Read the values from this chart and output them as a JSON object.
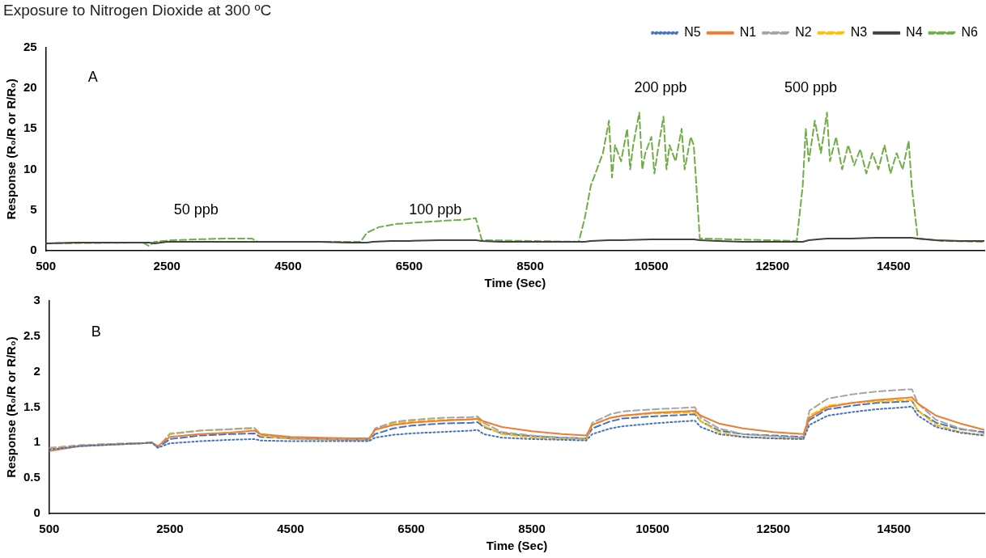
{
  "chart_data": [
    {
      "type": "line",
      "title": "Exposure to Nitrogen Dioxide at 300 ºC",
      "xlabel": "Time (Sec)",
      "ylabel": "Response (R₀/R or R/R₀)",
      "x": [
        500,
        1000,
        1500,
        2000,
        2200,
        2300,
        2500,
        3000,
        3500,
        3900,
        4000,
        4500,
        5000,
        5500,
        5800,
        5900,
        6200,
        6500,
        7000,
        7500,
        7600,
        7700,
        8000,
        8500,
        9000,
        9400,
        9500,
        9800,
        10000,
        10500,
        11000,
        11200,
        11300,
        11600,
        12000,
        12500,
        13000,
        13100,
        13400,
        13800,
        14200,
        14700,
        14800,
        14900,
        15200,
        15600,
        16000
      ],
      "xlim": [
        500,
        16000
      ],
      "xticks": [
        500,
        2500,
        4500,
        6500,
        8500,
        10500,
        12500,
        14500
      ],
      "ylim": [
        0,
        25
      ],
      "yticks": [
        0,
        5,
        10,
        15,
        20,
        25
      ],
      "grid": false,
      "legend": "top right",
      "marker": "none",
      "annotations": [
        "A",
        "50 ppb",
        "100 ppb",
        "200 ppb",
        "500 ppb"
      ],
      "series": [
        {
          "name": "N5",
          "color": "#4472c4",
          "line_style": "dotted",
          "values": [
            null,
            null,
            null,
            null,
            null,
            null,
            null,
            null,
            null,
            null,
            null,
            null,
            null,
            null,
            null,
            null,
            null,
            null,
            null,
            null,
            null,
            null,
            null,
            null,
            null,
            null,
            null,
            null,
            null,
            null,
            null,
            null,
            null,
            null,
            null,
            null,
            null,
            null,
            null,
            null,
            null,
            null,
            null,
            null,
            null,
            null,
            null
          ]
        },
        {
          "name": "N1",
          "color": "#ed7d31",
          "line_style": "solid",
          "values": [
            null,
            null,
            null,
            null,
            null,
            null,
            null,
            null,
            null,
            null,
            null,
            null,
            null,
            null,
            null,
            null,
            null,
            null,
            null,
            null,
            null,
            null,
            null,
            null,
            null,
            null,
            null,
            null,
            null,
            null,
            null,
            null,
            null,
            null,
            null,
            null,
            null,
            null,
            null,
            null,
            null,
            null,
            null,
            null,
            null,
            null,
            null
          ]
        },
        {
          "name": "N2",
          "color": "#a5a5a5",
          "line_style": "dashed",
          "values": [
            null,
            null,
            null,
            null,
            null,
            null,
            null,
            null,
            null,
            null,
            null,
            null,
            null,
            null,
            null,
            null,
            null,
            null,
            null,
            null,
            null,
            null,
            null,
            null,
            null,
            null,
            null,
            null,
            null,
            null,
            null,
            null,
            null,
            null,
            null,
            null,
            null,
            null,
            null,
            null,
            null,
            null,
            null,
            null,
            null,
            null,
            null
          ]
        },
        {
          "name": "N3",
          "color": "#ffc000",
          "line_style": "dashed",
          "values": [
            null,
            null,
            null,
            null,
            null,
            null,
            null,
            null,
            null,
            null,
            null,
            null,
            null,
            null,
            null,
            null,
            null,
            null,
            null,
            null,
            null,
            null,
            null,
            null,
            null,
            null,
            null,
            null,
            null,
            null,
            null,
            null,
            null,
            null,
            null,
            null,
            null,
            null,
            null,
            null,
            null,
            null,
            null,
            null,
            null,
            null,
            null
          ]
        },
        {
          "name": "N4",
          "color": "#404040",
          "line_style": "solid",
          "values": [
            0.9,
            1,
            1,
            1,
            1,
            0.9,
            1.1,
            1.1,
            1.1,
            1.1,
            1.1,
            1.1,
            1.1,
            1,
            1,
            1.1,
            1.2,
            1.2,
            1.3,
            1.3,
            1.3,
            1.2,
            1.1,
            1.1,
            1.1,
            1.1,
            1.2,
            1.3,
            1.3,
            1.4,
            1.4,
            1.4,
            1.3,
            1.2,
            1.1,
            1.1,
            1.1,
            1.3,
            1.5,
            1.5,
            1.6,
            1.6,
            1.6,
            1.5,
            1.3,
            1.2,
            1.2
          ]
        },
        {
          "name": "N6",
          "color": "#70ad47",
          "line_style": "dashed",
          "x": [
            500,
            2100,
            2200,
            2300,
            2600,
            3000,
            3500,
            3900,
            4000,
            5700,
            5800,
            6000,
            6300,
            6700,
            7100,
            7400,
            7600,
            7700,
            9300,
            9400,
            9500,
            9600,
            9700,
            9800,
            9850,
            9900,
            10000,
            10100,
            10150,
            10200,
            10300,
            10350,
            10400,
            10500,
            10550,
            10600,
            10700,
            10750,
            10800,
            10900,
            11000,
            11050,
            11150,
            11200,
            11300,
            12900,
            13000,
            13050,
            13100,
            13200,
            13300,
            13400,
            13450,
            13550,
            13650,
            13750,
            13850,
            13950,
            14050,
            14150,
            14250,
            14350,
            14450,
            14550,
            14650,
            14750,
            14800,
            14900,
            15300,
            16000
          ],
          "values": [
            0.9,
            1.0,
            0.6,
            1.1,
            1.3,
            1.4,
            1.5,
            1.5,
            1.1,
            1.1,
            2.2,
            2.9,
            3.3,
            3.5,
            3.7,
            3.8,
            4.0,
            1.3,
            1.1,
            4,
            8,
            10,
            12,
            16,
            9,
            13,
            11,
            15,
            10,
            13,
            17,
            10,
            12,
            14,
            9.5,
            12,
            16.5,
            10,
            13,
            11,
            15,
            10,
            14,
            13,
            1.5,
            1.2,
            8,
            15,
            11,
            16,
            12,
            17,
            11,
            14,
            10,
            13,
            10.5,
            12.5,
            9.5,
            12,
            10,
            13,
            9.5,
            12,
            10,
            13.5,
            8,
            1.5,
            1.2,
            1.1
          ]
        }
      ]
    },
    {
      "type": "line",
      "xlabel": "Time (Sec)",
      "ylabel": "Response (R₀/R or R/R₀)",
      "x": [
        500,
        1000,
        1500,
        2000,
        2200,
        2300,
        2500,
        3000,
        3500,
        3900,
        4000,
        4500,
        5000,
        5500,
        5800,
        5900,
        6200,
        6500,
        7000,
        7500,
        7600,
        7700,
        8000,
        8500,
        9000,
        9400,
        9500,
        9800,
        10000,
        10500,
        11000,
        11200,
        11300,
        11600,
        12000,
        12500,
        13000,
        13100,
        13400,
        13800,
        14200,
        14700,
        14800,
        14900,
        15200,
        15600,
        16000
      ],
      "xlim": [
        500,
        16000
      ],
      "xticks": [
        500,
        2500,
        4500,
        6500,
        8500,
        10500,
        12500,
        14500
      ],
      "ylim": [
        0,
        3
      ],
      "yticks": [
        0,
        0.5,
        1,
        1.5,
        2,
        2.5,
        3
      ],
      "grid": false,
      "marker": "none",
      "annotations": [
        "B"
      ],
      "series": [
        {
          "color": "#4472c4",
          "line_style": "dotted",
          "values": [
            0.9,
            0.95,
            0.97,
            0.99,
            1.0,
            0.93,
            0.99,
            1.02,
            1.04,
            1.05,
            1.03,
            1.02,
            1.02,
            1.02,
            1.02,
            1.07,
            1.11,
            1.13,
            1.15,
            1.17,
            1.18,
            1.12,
            1.07,
            1.05,
            1.04,
            1.03,
            1.12,
            1.2,
            1.23,
            1.27,
            1.3,
            1.31,
            1.22,
            1.12,
            1.08,
            1.06,
            1.05,
            1.25,
            1.38,
            1.43,
            1.47,
            1.5,
            1.51,
            1.38,
            1.22,
            1.14,
            1.1
          ]
        },
        {
          "color": "#ed7d31",
          "line_style": "solid",
          "values": [
            0.88,
            0.95,
            0.97,
            0.99,
            1.0,
            0.95,
            1.08,
            1.12,
            1.14,
            1.17,
            1.12,
            1.08,
            1.07,
            1.06,
            1.06,
            1.18,
            1.25,
            1.28,
            1.31,
            1.33,
            1.34,
            1.3,
            1.22,
            1.16,
            1.12,
            1.1,
            1.25,
            1.35,
            1.38,
            1.42,
            1.44,
            1.45,
            1.38,
            1.27,
            1.2,
            1.15,
            1.12,
            1.35,
            1.5,
            1.56,
            1.6,
            1.63,
            1.64,
            1.55,
            1.38,
            1.27,
            1.18
          ]
        },
        {
          "color": "#a5a5a5",
          "line_style": "dashed",
          "values": [
            0.92,
            0.96,
            0.98,
            0.99,
            1.0,
            0.93,
            1.12,
            1.17,
            1.19,
            1.21,
            1.12,
            1.06,
            1.05,
            1.04,
            1.04,
            1.2,
            1.29,
            1.32,
            1.35,
            1.36,
            1.37,
            1.28,
            1.15,
            1.1,
            1.07,
            1.06,
            1.28,
            1.4,
            1.44,
            1.47,
            1.49,
            1.5,
            1.35,
            1.2,
            1.12,
            1.09,
            1.07,
            1.45,
            1.62,
            1.68,
            1.72,
            1.75,
            1.75,
            1.55,
            1.32,
            1.2,
            1.13
          ]
        },
        {
          "color": "#ffc000",
          "line_style": "dashed",
          "values": [
            0.93,
            0.96,
            0.98,
            0.99,
            1.0,
            0.93,
            1.13,
            1.17,
            1.19,
            1.2,
            1.1,
            1.05,
            1.04,
            1.03,
            1.03,
            1.18,
            1.27,
            1.3,
            1.32,
            1.33,
            1.33,
            1.24,
            1.12,
            1.07,
            1.05,
            1.04,
            1.25,
            1.35,
            1.38,
            1.41,
            1.42,
            1.43,
            1.3,
            1.15,
            1.08,
            1.06,
            1.05,
            1.38,
            1.52,
            1.56,
            1.58,
            1.6,
            1.6,
            1.45,
            1.25,
            1.15,
            1.1
          ]
        },
        {
          "color": "#4472c4",
          "line_style": "dashed",
          "values": [
            0.92,
            0.96,
            0.98,
            0.99,
            1.0,
            0.93,
            1.05,
            1.1,
            1.12,
            1.13,
            1.08,
            1.06,
            1.05,
            1.04,
            1.04,
            1.12,
            1.2,
            1.24,
            1.27,
            1.28,
            1.29,
            1.22,
            1.13,
            1.09,
            1.07,
            1.06,
            1.2,
            1.3,
            1.34,
            1.37,
            1.39,
            1.4,
            1.3,
            1.17,
            1.12,
            1.1,
            1.08,
            1.32,
            1.47,
            1.52,
            1.56,
            1.58,
            1.59,
            1.45,
            1.28,
            1.19,
            1.15
          ]
        }
      ]
    }
  ]
}
